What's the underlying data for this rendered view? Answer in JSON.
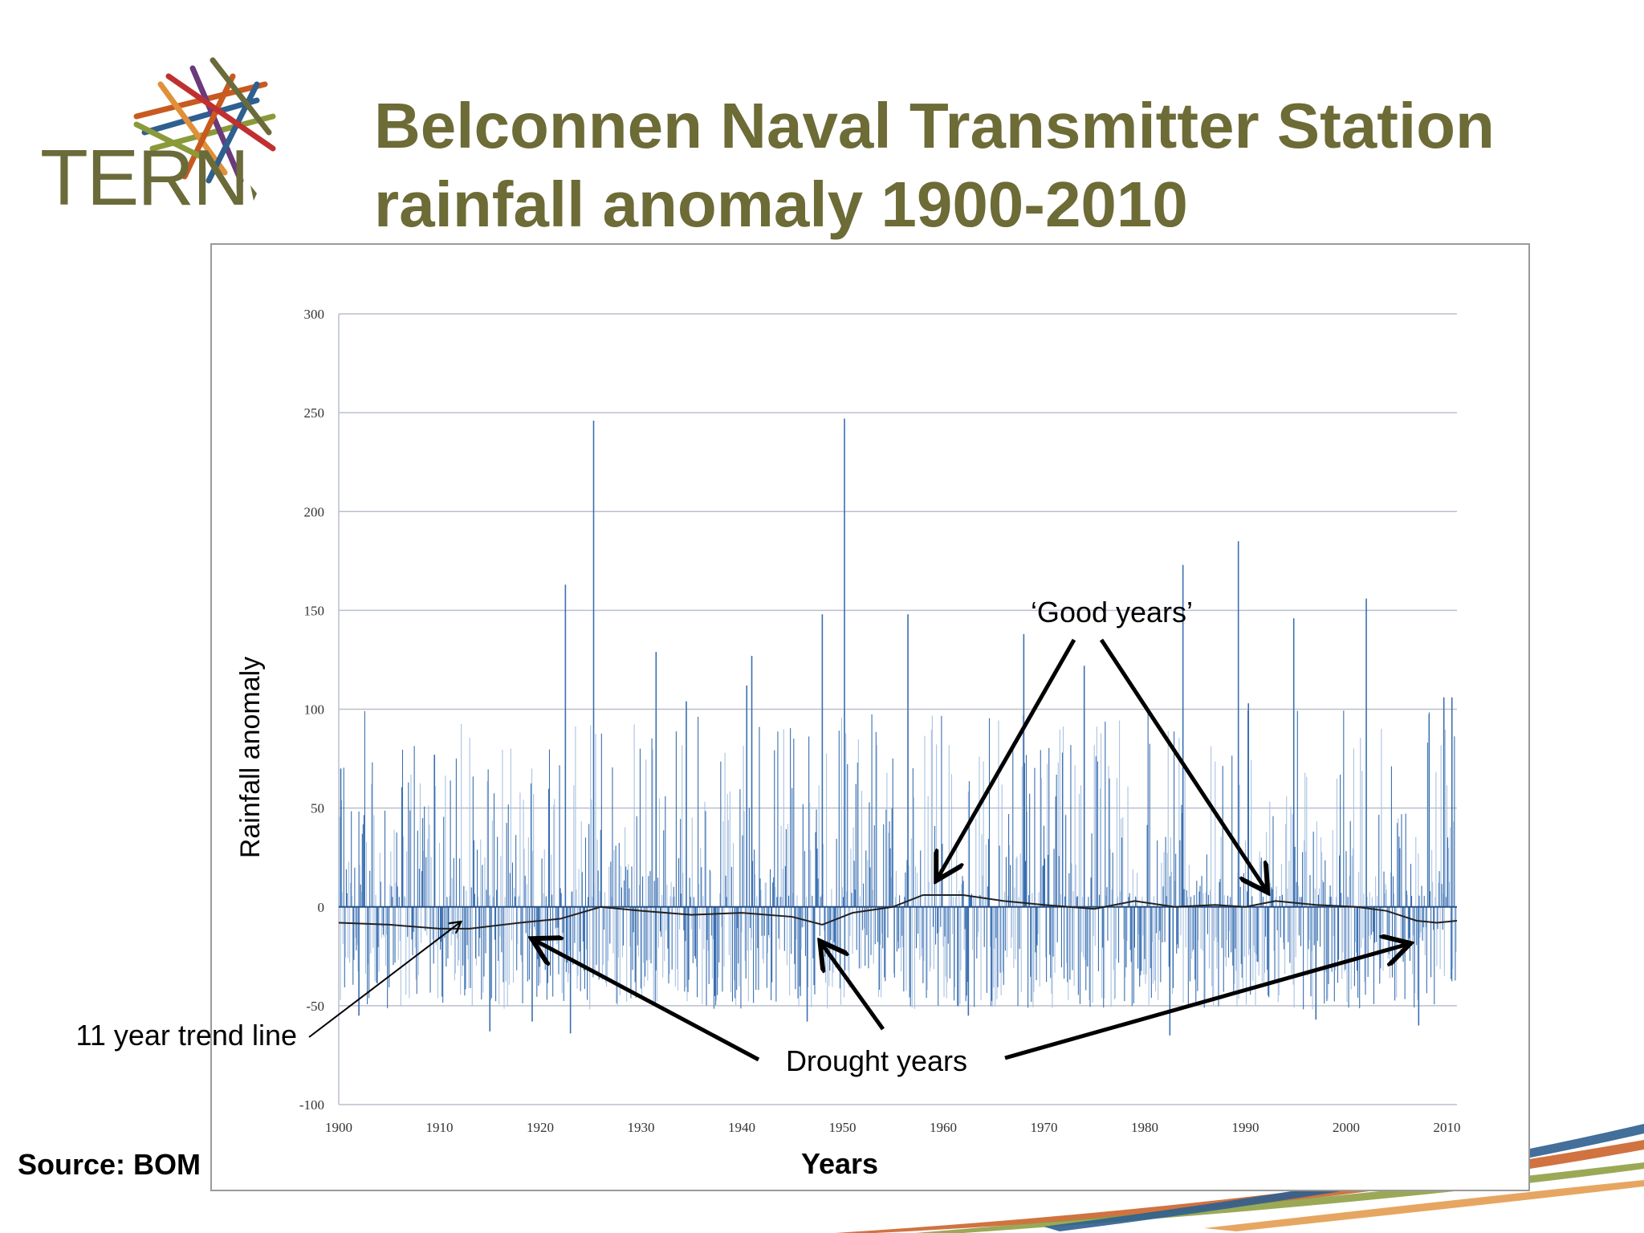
{
  "slide": {
    "title_line1": "Belconnen Naval Transmitter Station",
    "title_line2": "rainfall anomaly 1900-2010",
    "source": "Source: BOM"
  },
  "logo": {
    "text": "TERN",
    "icon": "australia-map-icon",
    "color": "#6b6b3a"
  },
  "colors": {
    "title": "#6d6b36",
    "bar_dark": "#3a6fb0",
    "bar_light": "#a9c2e2",
    "trend": "#222222",
    "grid": "#b9bfcc",
    "swoosh": [
      "#2f5f8f",
      "#c85a20",
      "#8a9a3a",
      "#e0903a"
    ]
  },
  "chart_data": {
    "type": "bar",
    "title": "",
    "xlabel": "Years",
    "ylabel": "Rainfall anomaly",
    "xlim": [
      1900,
      2011
    ],
    "ylim": [
      -100,
      300
    ],
    "yticks": [
      "300",
      "250",
      "200",
      "150",
      "100",
      "50",
      "0",
      "-50",
      "-100"
    ],
    "xticks": [
      "1900",
      "1910",
      "1920",
      "1930",
      "1940",
      "1950",
      "1960",
      "1970",
      "1980",
      "1990",
      "2000",
      "2010"
    ],
    "grid": true,
    "series": [
      {
        "name": "Monthly rainfall anomaly",
        "kind": "bar",
        "note": "dense monthly series; notable peaks listed",
        "peaks": [
          {
            "x": 1900.2,
            "y": 70
          },
          {
            "x": 1909.5,
            "y": 77
          },
          {
            "x": 1922.5,
            "y": 163
          },
          {
            "x": 1925.3,
            "y": 246
          },
          {
            "x": 1931.5,
            "y": 129
          },
          {
            "x": 1934.5,
            "y": 104
          },
          {
            "x": 1940.5,
            "y": 112
          },
          {
            "x": 1941.0,
            "y": 127
          },
          {
            "x": 1948.0,
            "y": 148
          },
          {
            "x": 1950.2,
            "y": 247
          },
          {
            "x": 1956.5,
            "y": 148
          },
          {
            "x": 1968.0,
            "y": 138
          },
          {
            "x": 1974.0,
            "y": 122
          },
          {
            "x": 1983.8,
            "y": 173
          },
          {
            "x": 1989.3,
            "y": 185
          },
          {
            "x": 1990.3,
            "y": 103
          },
          {
            "x": 1994.8,
            "y": 146
          },
          {
            "x": 2002.0,
            "y": 156
          },
          {
            "x": 2009.7,
            "y": 106
          },
          {
            "x": 2010.5,
            "y": 106
          }
        ],
        "troughs": [
          {
            "x": 1902.0,
            "y": -55
          },
          {
            "x": 1915.0,
            "y": -63
          },
          {
            "x": 1919.2,
            "y": -58
          },
          {
            "x": 1923.0,
            "y": -64
          },
          {
            "x": 1946.5,
            "y": -58
          },
          {
            "x": 1962.5,
            "y": -55
          },
          {
            "x": 1982.5,
            "y": -65
          },
          {
            "x": 1997.0,
            "y": -57
          },
          {
            "x": 2007.2,
            "y": -60
          }
        ]
      },
      {
        "name": "11 year trend line",
        "kind": "line",
        "x": [
          1900,
          1905,
          1910,
          1913,
          1918,
          1922,
          1926,
          1930,
          1935,
          1940,
          1945,
          1948,
          1951,
          1955,
          1958,
          1962,
          1966,
          1970,
          1975,
          1979,
          1983,
          1987,
          1990,
          1993,
          1997,
          2001,
          2004,
          2007,
          2009,
          2011
        ],
        "y": [
          -8,
          -9,
          -11,
          -11,
          -8,
          -6,
          0,
          -2,
          -4,
          -3,
          -5,
          -9,
          -3,
          0,
          6,
          6,
          3,
          1,
          -1,
          3,
          0,
          1,
          0,
          3,
          1,
          0,
          -2,
          -7,
          -8,
          -7
        ]
      }
    ],
    "annotations": [
      {
        "text": "‘Good years’",
        "target_years": [
          1959.5,
          1992
        ]
      },
      {
        "text": "Drought years",
        "target_years": [
          1919.5,
          1948,
          2006
        ]
      },
      {
        "text": "11 year trend line",
        "target_year": 1912
      }
    ]
  }
}
